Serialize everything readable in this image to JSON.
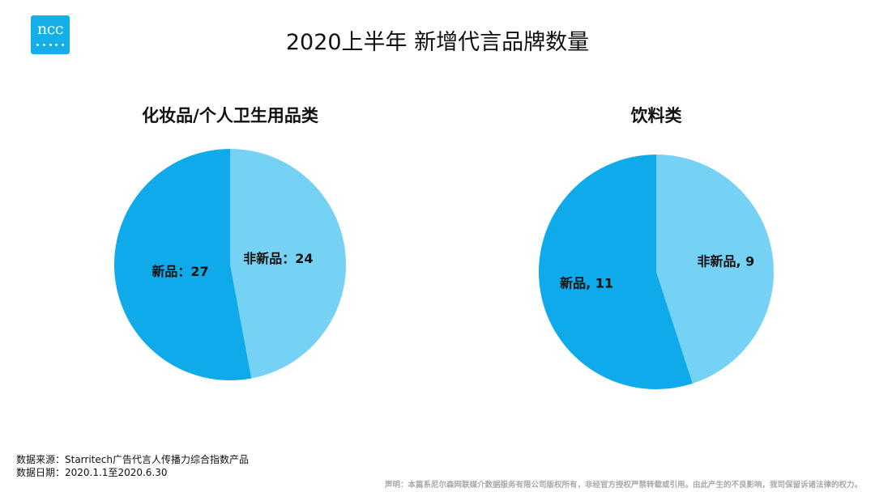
{
  "logo": {
    "text": "ncc"
  },
  "title": "2020上半年 新增代言品牌数量",
  "chart_data": [
    {
      "type": "pie",
      "title": "化妆品/个人卫生用品类",
      "label_style": "full_colon",
      "slices": [
        {
          "label": "非新品",
          "value": 24,
          "color": "#75d2f5"
        },
        {
          "label": "新品",
          "value": 27,
          "color": "#0eaae9"
        }
      ]
    },
    {
      "type": "pie",
      "title": "饮料类",
      "label_style": "comma",
      "slices": [
        {
          "label": "非新品",
          "value": 9,
          "color": "#75d2f5"
        },
        {
          "label": "新品",
          "value": 11,
          "color": "#0eaae9"
        }
      ]
    }
  ],
  "footer": {
    "source": "数据来源：Starritech广告代言人传播力综合指数产品",
    "date": "数据日期：2020.1.1至2020.6.30",
    "disclaimer": "声明：本篇系尼尔森网联媒介数据服务有限公司版权所有，非经官方授权严禁转载或引用。由此产生的不良影响，我司保留诉诸法律的权力。"
  }
}
